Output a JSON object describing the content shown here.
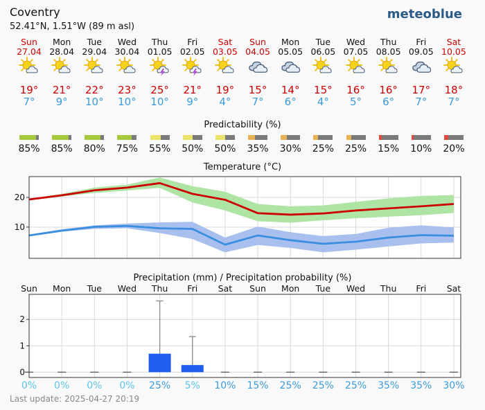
{
  "location": {
    "name": "Coventry",
    "coords": "52.41°N, 1.51°W (89 m asl)"
  },
  "brand": "meteoblue",
  "days": [
    {
      "day": "Sun",
      "date": "27.04",
      "weekend": true,
      "icon": "sun-cloud-icon",
      "tmax": "19°",
      "tmin": "7°"
    },
    {
      "day": "Mon",
      "date": "28.04",
      "weekend": false,
      "icon": "sun-cloud-icon",
      "tmax": "21°",
      "tmin": "9°"
    },
    {
      "day": "Tue",
      "date": "29.04",
      "weekend": false,
      "icon": "sun-cloud-icon",
      "tmax": "22°",
      "tmin": "10°"
    },
    {
      "day": "Wed",
      "date": "30.04",
      "weekend": false,
      "icon": "sun-cloud-icon",
      "tmax": "23°",
      "tmin": "10°"
    },
    {
      "day": "Thu",
      "date": "01.05",
      "weekend": false,
      "icon": "thunderstorm-icon",
      "tmax": "25°",
      "tmin": "10°"
    },
    {
      "day": "Fri",
      "date": "02.05",
      "weekend": false,
      "icon": "thunderstorm-icon",
      "tmax": "21°",
      "tmin": "9°"
    },
    {
      "day": "Sat",
      "date": "03.05",
      "weekend": true,
      "icon": "sun-cloud-icon",
      "tmax": "19°",
      "tmin": "4°"
    },
    {
      "day": "Sun",
      "date": "04.05",
      "weekend": true,
      "icon": "cloudy-icon",
      "tmax": "15°",
      "tmin": "7°"
    },
    {
      "day": "Mon",
      "date": "05.05",
      "weekend": false,
      "icon": "cloudy-icon",
      "tmax": "14°",
      "tmin": "6°"
    },
    {
      "day": "Tue",
      "date": "06.05",
      "weekend": false,
      "icon": "sun-cloud-icon",
      "tmax": "15°",
      "tmin": "4°"
    },
    {
      "day": "Wed",
      "date": "07.05",
      "weekend": false,
      "icon": "sun-cloud-icon",
      "tmax": "16°",
      "tmin": "5°"
    },
    {
      "day": "Thu",
      "date": "08.05",
      "weekend": false,
      "icon": "sun-cloud-icon",
      "tmax": "16°",
      "tmin": "6°"
    },
    {
      "day": "Fri",
      "date": "09.05",
      "weekend": false,
      "icon": "cloudy-icon",
      "tmax": "17°",
      "tmin": "7°"
    },
    {
      "day": "Sat",
      "date": "10.05",
      "weekend": true,
      "icon": "sun-cloud-icon",
      "tmax": "18°",
      "tmin": "7°"
    }
  ],
  "predictability": {
    "title": "Predictability (%)",
    "values": [
      "85%",
      "85%",
      "80%",
      "75%",
      "55%",
      "50%",
      "50%",
      "35%",
      "30%",
      "25%",
      "25%",
      "15%",
      "10%",
      "20%"
    ],
    "fractions": [
      0.85,
      0.85,
      0.8,
      0.75,
      0.55,
      0.5,
      0.5,
      0.35,
      0.3,
      0.25,
      0.25,
      0.15,
      0.1,
      0.2
    ],
    "colors": [
      "#a5c83e",
      "#a5c83e",
      "#a5c83e",
      "#a5c83e",
      "#ece36a",
      "#ece36a",
      "#ece36a",
      "#e9b255",
      "#e9b255",
      "#e9b255",
      "#e9b255",
      "#e04a3c",
      "#e04a3c",
      "#e04a3c"
    ]
  },
  "precip_days": [
    "Sun",
    "Mon",
    "Tue",
    "Wed",
    "Thu",
    "Fri",
    "Sat",
    "Sun",
    "Mon",
    "Tue",
    "Wed",
    "Thu",
    "Fri",
    "Sat"
  ],
  "precip_prob": [
    "0%",
    "0%",
    "0%",
    "0%",
    "25%",
    "5%",
    "10%",
    "15%",
    "25%",
    "25%",
    "25%",
    "35%",
    "35%",
    "30%"
  ],
  "last_update": "Last update: 2025-04-27 20:19",
  "chart_data": [
    {
      "type": "line",
      "title": "Temperature (°C)",
      "x": [
        "27.04",
        "28.04",
        "29.04",
        "30.04",
        "01.05",
        "02.05",
        "03.05",
        "04.05",
        "05.05",
        "06.05",
        "07.05",
        "08.05",
        "09.05",
        "10.05"
      ],
      "ylim": [
        -0.5,
        27
      ],
      "yticks": [
        10,
        20
      ],
      "grid": true,
      "series": [
        {
          "values": [
            19.3,
            20.7,
            22.4,
            23.3,
            24.8,
            21.2,
            19.2,
            14.7,
            14.2,
            14.6,
            15.6,
            16.3,
            17.0,
            17.8
          ],
          "band_low": [
            19.0,
            20.3,
            21.5,
            22.3,
            23.2,
            18.3,
            15.6,
            12.0,
            11.5,
            12.3,
            13.0,
            13.5,
            14.0,
            14.8
          ],
          "band_high": [
            19.5,
            21.2,
            23.3,
            24.3,
            26.7,
            23.8,
            21.9,
            17.8,
            17.0,
            17.3,
            18.5,
            19.7,
            20.5,
            20.8
          ],
          "color": "#cc0000",
          "band_color": "#aee5a4"
        },
        {
          "values": [
            7.2,
            8.8,
            10.1,
            10.4,
            9.6,
            9.4,
            4.1,
            7.2,
            5.6,
            4.4,
            5.1,
            6.5,
            7.3,
            7.1
          ],
          "band_low": [
            7.0,
            8.5,
            9.4,
            9.6,
            8.0,
            6.0,
            1.5,
            4.0,
            3.0,
            1.5,
            2.4,
            3.5,
            4.5,
            4.8
          ],
          "band_high": [
            7.5,
            9.3,
            10.6,
            11.2,
            11.6,
            11.8,
            6.5,
            10.2,
            8.3,
            7.0,
            7.7,
            9.8,
            10.6,
            9.9
          ],
          "color": "#3a8ee0",
          "band_color": "#a9c0ee"
        }
      ]
    },
    {
      "type": "bar",
      "title": "Precipitation (mm) / Precipitation probability (%)",
      "categories": [
        "Sun",
        "Mon",
        "Tue",
        "Wed",
        "Thu",
        "Fri",
        "Sat",
        "Sun",
        "Mon",
        "Tue",
        "Wed",
        "Thu",
        "Fri",
        "Sat"
      ],
      "values": [
        0,
        0,
        0,
        0,
        0.7,
        0.27,
        0,
        0,
        0,
        0,
        0,
        0,
        0,
        0
      ],
      "error_high": [
        0,
        0,
        0,
        0,
        2.7,
        1.35,
        0,
        0,
        0,
        0,
        0,
        0,
        0,
        0
      ],
      "ylim": [
        -0.2,
        2.95
      ],
      "yticks": [
        0,
        1,
        2
      ],
      "grid": true,
      "bar_color": "#1f5ef0"
    }
  ]
}
